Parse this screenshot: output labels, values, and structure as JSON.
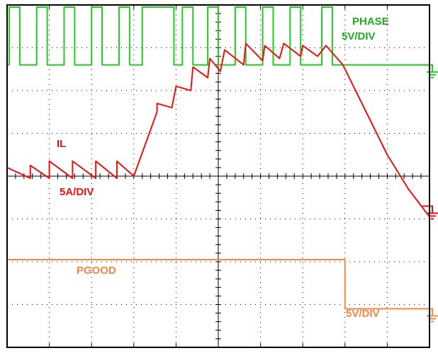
{
  "chart_data": {
    "type": "line",
    "title": "",
    "xlabel": "",
    "ylabel": "",
    "grid": true,
    "divisions": {
      "x": 10,
      "y": 8
    },
    "y_range_div": [
      -4,
      4
    ],
    "x_range_div": [
      0,
      10
    ],
    "series": [
      {
        "name": "PHASE",
        "scale": "5V/DIV",
        "color": "#22cc22",
        "ground_div": 2.6,
        "description_levels_div": {
          "low": 2.6,
          "high": 3.95
        },
        "pulses_div": [
          [
            0.05,
            0.3
          ],
          [
            0.7,
            0.95
          ],
          [
            1.35,
            1.6
          ],
          [
            2.0,
            2.25
          ],
          [
            2.65,
            2.9
          ],
          [
            3.2,
            3.95
          ],
          [
            4.15,
            4.4
          ],
          [
            4.75,
            5.0
          ],
          [
            5.4,
            5.65
          ],
          [
            6.05,
            6.3
          ],
          [
            6.7,
            6.95
          ],
          [
            7.45,
            7.7
          ]
        ],
        "end_div": 7.9
      },
      {
        "name": "IL",
        "scale": "5A/DIV",
        "color": "#ee1111",
        "ground_div": -0.7,
        "points_div": [
          [
            0.0,
            0.2
          ],
          [
            0.55,
            -0.05
          ],
          [
            0.55,
            0.25
          ],
          [
            1.0,
            -0.05
          ],
          [
            1.0,
            0.35
          ],
          [
            1.55,
            -0.05
          ],
          [
            1.55,
            0.35
          ],
          [
            2.1,
            -0.05
          ],
          [
            2.1,
            0.35
          ],
          [
            2.6,
            -0.05
          ],
          [
            2.6,
            0.35
          ],
          [
            3.0,
            0.0
          ],
          [
            3.55,
            1.5
          ],
          [
            3.55,
            1.7
          ],
          [
            3.9,
            1.6
          ],
          [
            4.0,
            2.1
          ],
          [
            4.35,
            2.0
          ],
          [
            4.4,
            2.55
          ],
          [
            4.75,
            2.3
          ],
          [
            4.8,
            2.75
          ],
          [
            5.05,
            2.45
          ],
          [
            5.15,
            2.95
          ],
          [
            5.6,
            2.6
          ],
          [
            5.65,
            3.1
          ],
          [
            6.05,
            2.7
          ],
          [
            6.1,
            3.05
          ],
          [
            6.45,
            2.75
          ],
          [
            6.55,
            3.1
          ],
          [
            6.95,
            2.8
          ],
          [
            7.0,
            3.05
          ],
          [
            7.35,
            2.8
          ],
          [
            7.55,
            3.05
          ],
          [
            7.95,
            2.6
          ],
          [
            8.5,
            1.5
          ],
          [
            9.0,
            0.5
          ],
          [
            9.5,
            -0.3
          ],
          [
            10.0,
            -0.95
          ]
        ]
      },
      {
        "name": "PGOOD",
        "scale": "5V/DIV",
        "color": "#f08844",
        "ground_div": -3.1,
        "points_div": [
          [
            0.0,
            -1.95
          ],
          [
            8.0,
            -1.95
          ],
          [
            8.0,
            -3.1
          ],
          [
            10.0,
            -3.1
          ]
        ]
      }
    ]
  },
  "labels": {
    "phase": "PHASE",
    "phase_scale": "5V/DIV",
    "il": "IL",
    "il_scale": "5A/DIV",
    "pgood": "PGOOD",
    "pgood_scale": "5V/DIV"
  }
}
